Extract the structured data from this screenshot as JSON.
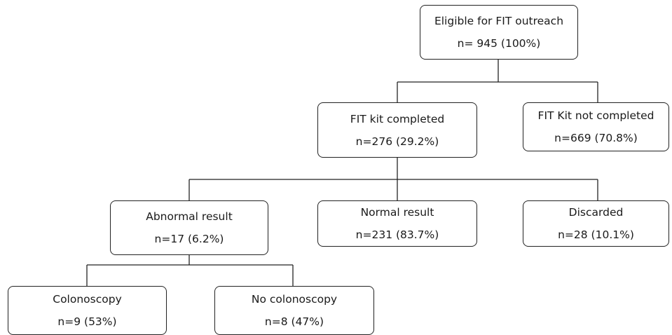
{
  "nodes": {
    "eligible": {
      "title": "Eligible for FIT outreach",
      "count": "n= 945 (100%)"
    },
    "completed": {
      "title": "FIT kit completed",
      "count": "n=276 (29.2%)"
    },
    "not_completed": {
      "title": "FIT Kit not completed",
      "count": "n=669 (70.8%)"
    },
    "abnormal": {
      "title": "Abnormal result",
      "count": "n=17 (6.2%)"
    },
    "normal": {
      "title": "Normal result",
      "count": "n=231 (83.7%)"
    },
    "discarded": {
      "title": "Discarded",
      "count": "n=28 (10.1%)"
    },
    "colonoscopy": {
      "title": "Colonoscopy",
      "count": "n=9 (53%)"
    },
    "no_colonoscopy": {
      "title": "No colonoscopy",
      "count": "n=8 (47%)"
    }
  }
}
